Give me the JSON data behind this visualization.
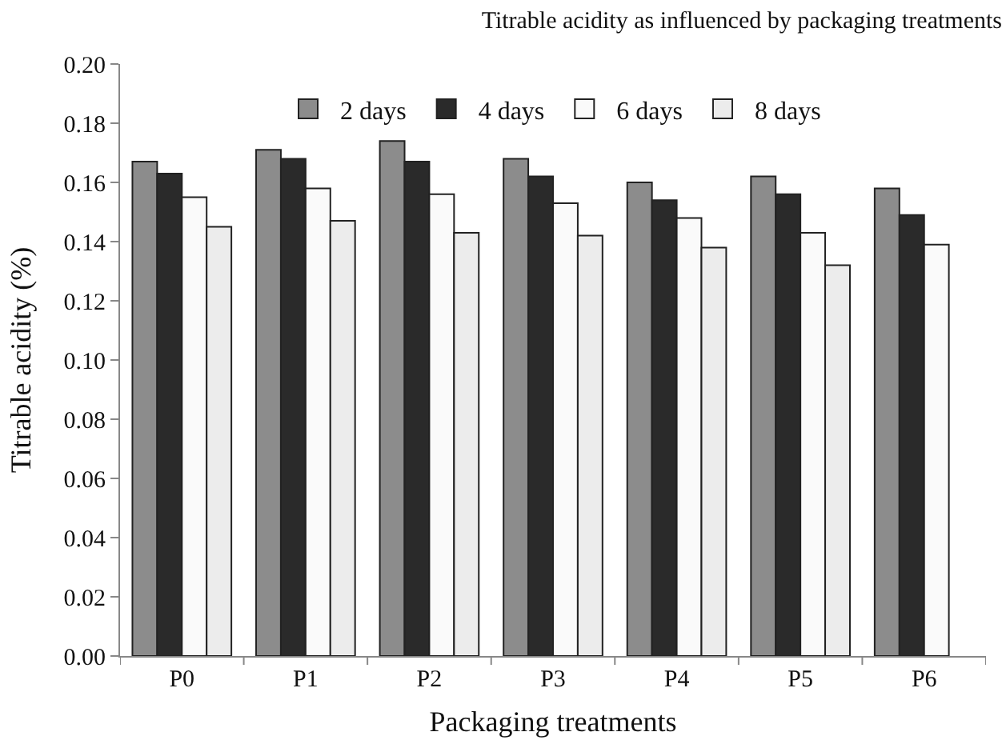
{
  "chart_data": {
    "type": "bar",
    "title": "Titrable acidity as influenced by packaging treatments",
    "xlabel": "Packaging treatments",
    "ylabel": "Titrable acidity (%)",
    "categories": [
      "P0",
      "P1",
      "P2",
      "P3",
      "P4",
      "P5",
      "P6"
    ],
    "series": [
      {
        "name": "2 days",
        "color": "#8c8c8c",
        "values": [
          0.167,
          0.171,
          0.174,
          0.168,
          0.16,
          0.162,
          0.158
        ]
      },
      {
        "name": "4 days",
        "color": "#2a2a2a",
        "values": [
          0.163,
          0.168,
          0.167,
          0.162,
          0.154,
          0.156,
          0.149
        ]
      },
      {
        "name": "6 days",
        "color": "#fafafa",
        "values": [
          0.155,
          0.158,
          0.156,
          0.153,
          0.148,
          0.143,
          0.139
        ]
      },
      {
        "name": "8 days",
        "color": "#ececec",
        "values": [
          0.145,
          0.147,
          0.143,
          0.142,
          0.138,
          0.132,
          null
        ]
      }
    ],
    "ylim": [
      0,
      0.2
    ],
    "yticks": [
      {
        "value": 0,
        "label": "0.00"
      },
      {
        "value": 0.02,
        "label": "0.02"
      },
      {
        "value": 0.04,
        "label": "0.04"
      },
      {
        "value": 0.06,
        "label": "0.06"
      },
      {
        "value": 0.08,
        "label": "0.08"
      },
      {
        "value": 0.1,
        "label": "0.10"
      },
      {
        "value": 0.12,
        "label": "0.12"
      },
      {
        "value": 0.14,
        "label": "0.14"
      },
      {
        "value": 0.16,
        "label": "0.16"
      },
      {
        "value": 0.18,
        "label": "0.18"
      },
      {
        "value": 0.2,
        "label": "0.20"
      }
    ],
    "legend": "top"
  }
}
